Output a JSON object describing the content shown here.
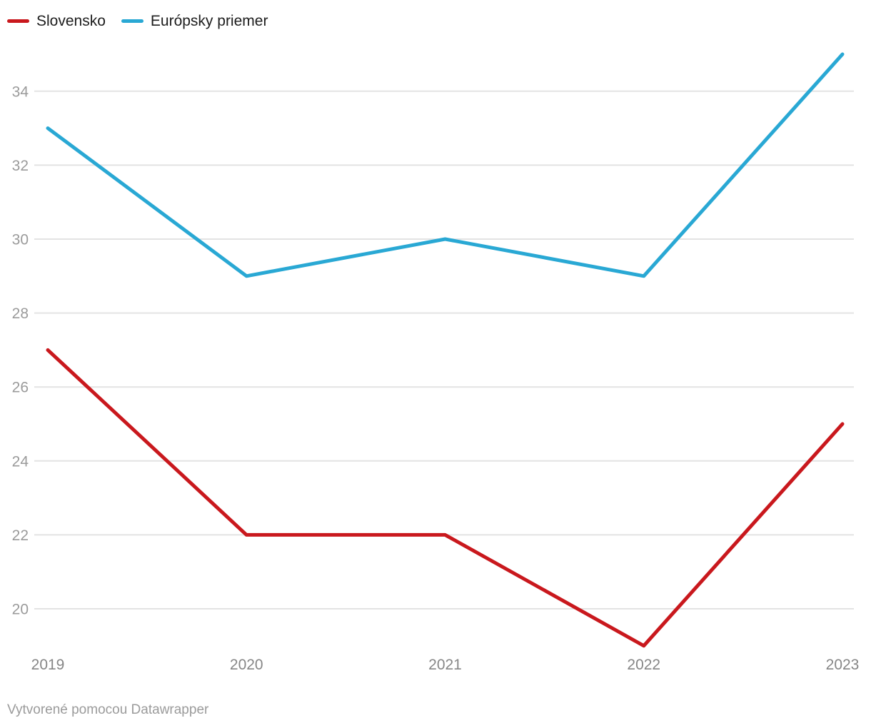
{
  "legend": {
    "items": [
      {
        "label": "Slovensko",
        "color": "#c9181d"
      },
      {
        "label": "Európsky priemer",
        "color": "#29a8d4"
      }
    ]
  },
  "footer": {
    "text": "Vytvorené pomocou Datawrapper"
  },
  "chart_data": {
    "type": "line",
    "x": [
      "2019",
      "2020",
      "2021",
      "2022",
      "2023"
    ],
    "series": [
      {
        "name": "Slovensko",
        "color": "#c9181d",
        "values": [
          27,
          22,
          22,
          19,
          25
        ]
      },
      {
        "name": "Európsky priemer",
        "color": "#29a8d4",
        "values": [
          33,
          29,
          30,
          29,
          35
        ]
      }
    ],
    "yticks": [
      20,
      22,
      24,
      26,
      28,
      30,
      32,
      34
    ],
    "ylim": [
      19,
      35
    ],
    "xlabel": "",
    "ylabel": "",
    "grid": "horizontal-only",
    "grid_color": "#e3e3e3",
    "tick_label_color": "#9b9b9b",
    "x_label_color": "#868686",
    "legend_position": "top-left",
    "line_width": 5
  }
}
